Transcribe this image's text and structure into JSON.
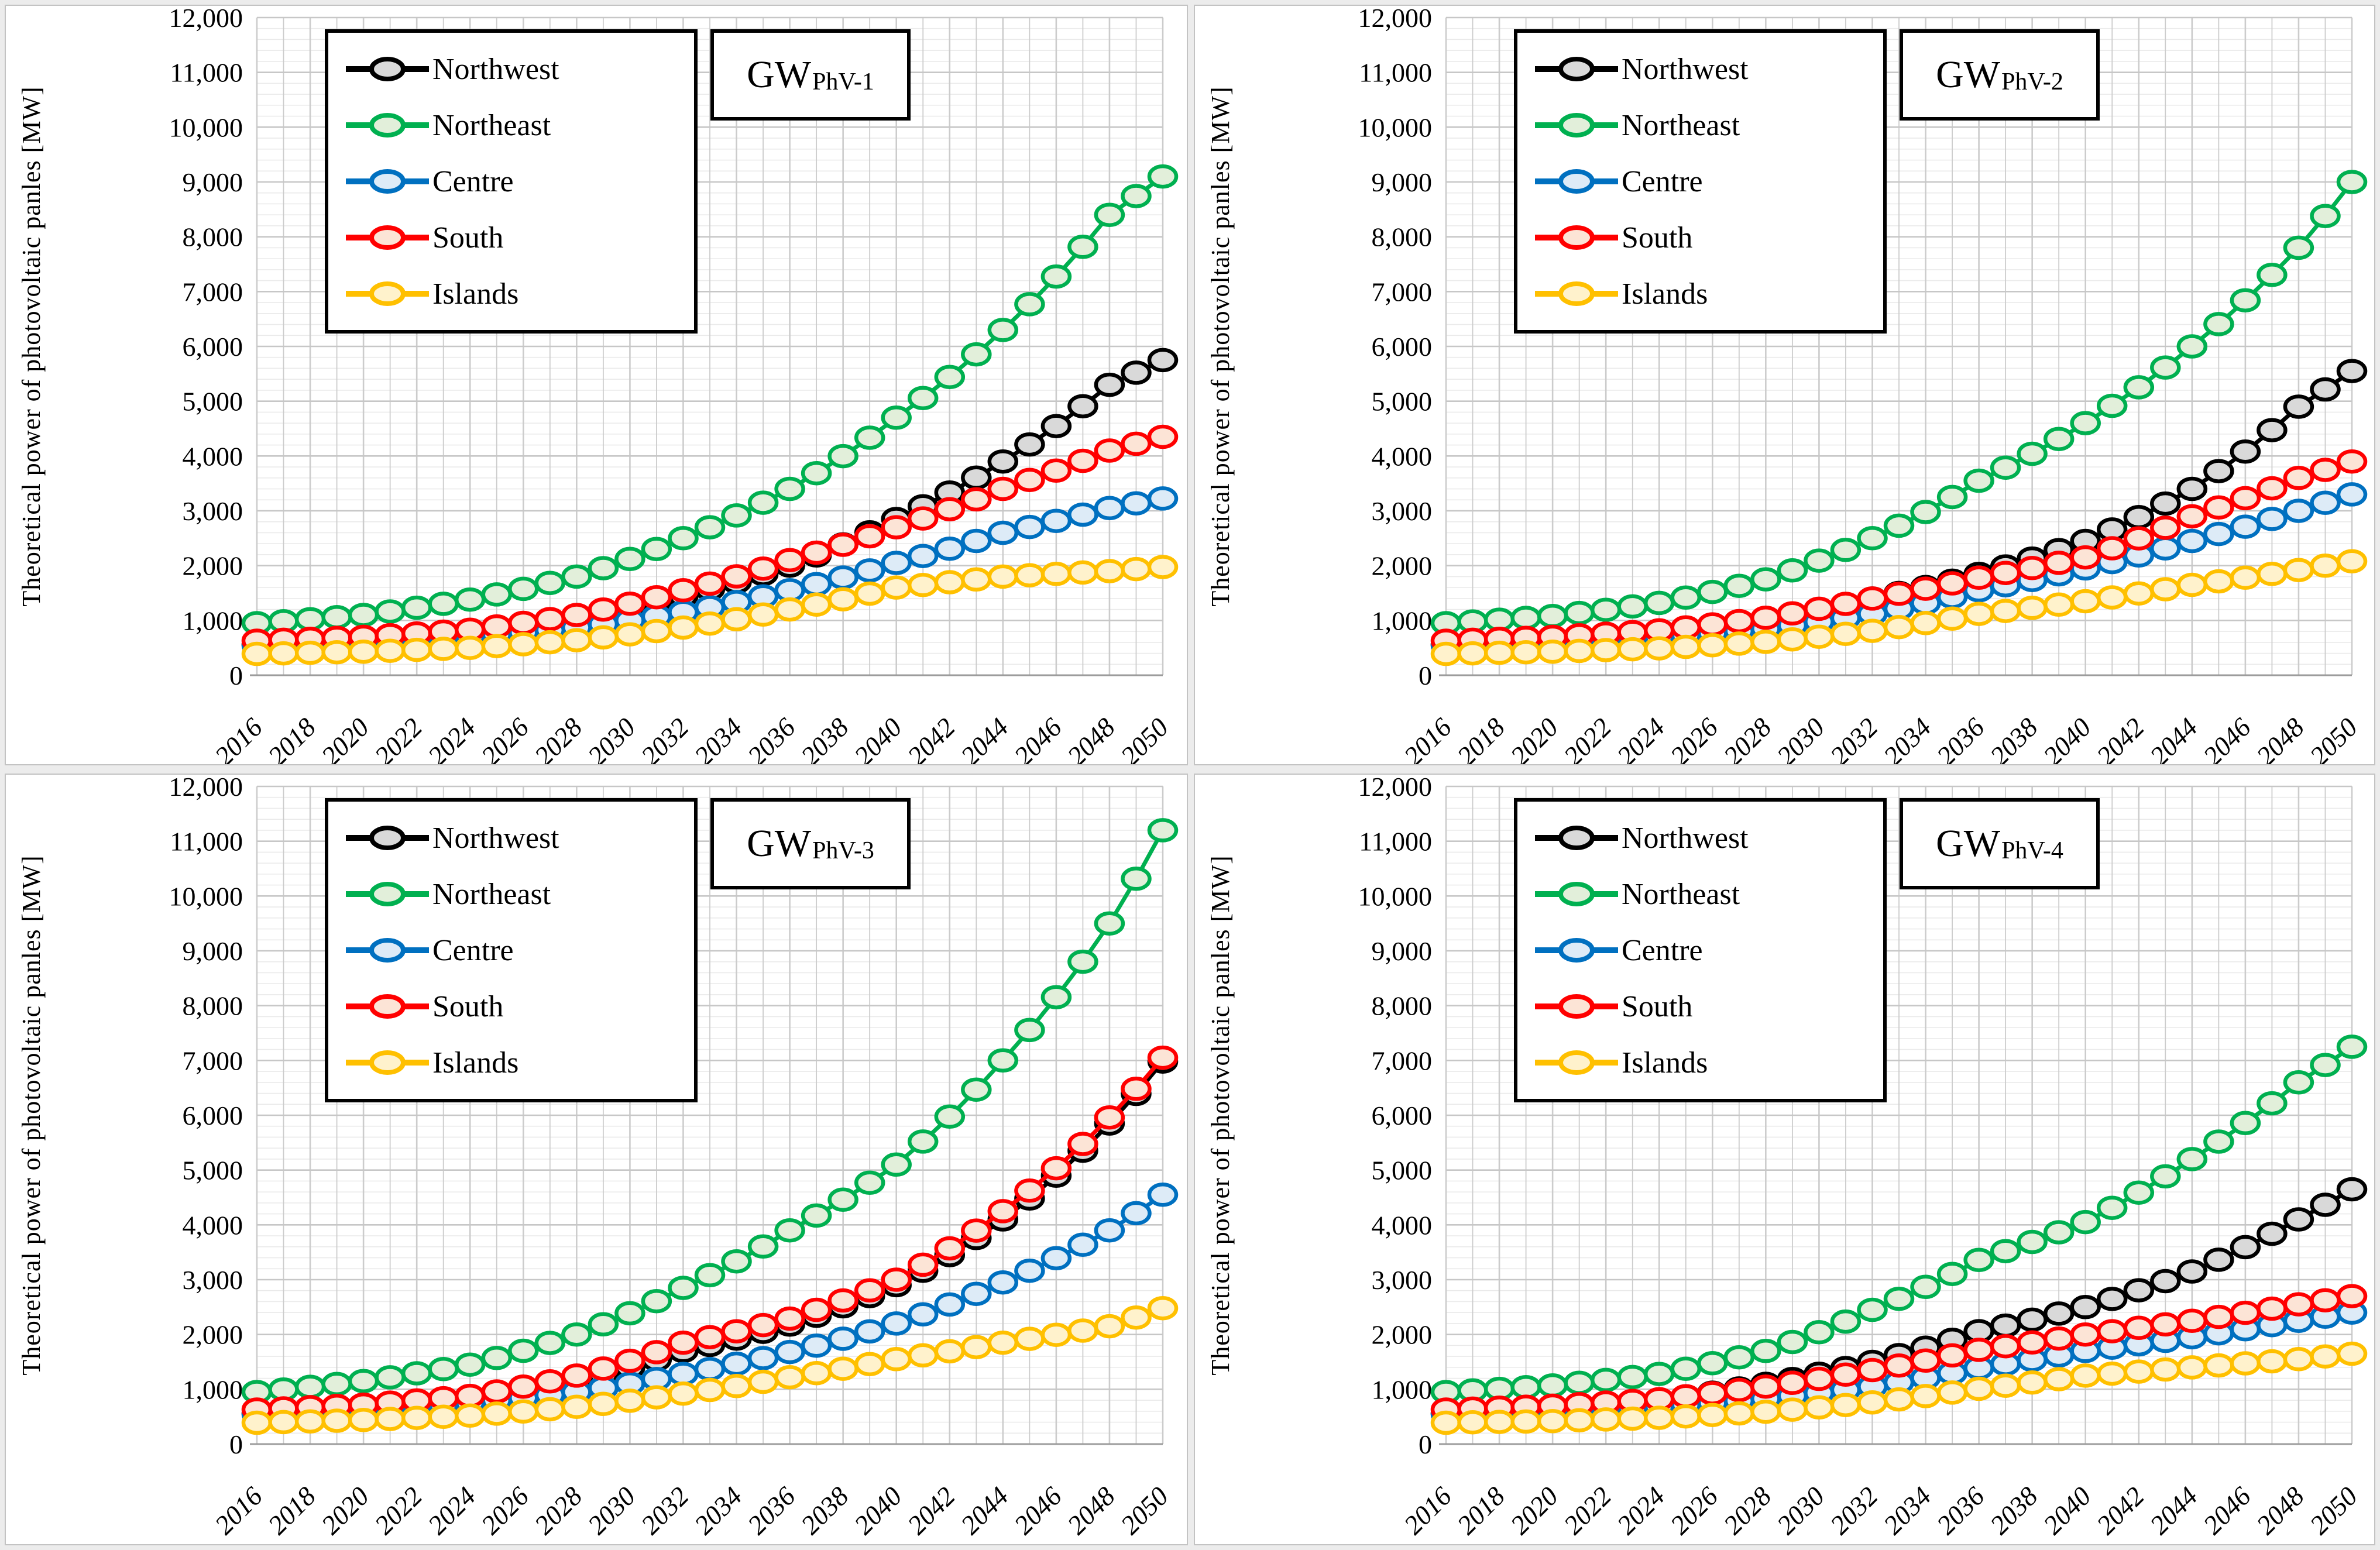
{
  "page": {
    "background": "#ececec",
    "panel_background": "#ffffff",
    "panel_border_color": "#c3c3c3"
  },
  "shared": {
    "y_axis_title": "Theoretical power of photovoltaic panles [MW]",
    "y_ticks": [
      "0",
      "1,000",
      "2,000",
      "3,000",
      "4,000",
      "5,000",
      "6,000",
      "7,000",
      "8,000",
      "9,000",
      "10,000",
      "11,000",
      "12,000"
    ],
    "ylim": [
      0,
      12000
    ],
    "y_major_step": 1000,
    "y_minor_step": 200,
    "xlim": [
      2016,
      2050
    ],
    "x_label_step": 2,
    "grid": "on",
    "legend_position": "top-left-inside",
    "legend": [
      {
        "name": "Northwest",
        "color": "#000000",
        "fill": "#d9d9d9"
      },
      {
        "name": "Northeast",
        "color": "#00b050",
        "fill": "#e2efda"
      },
      {
        "name": "Centre",
        "color": "#0070c0",
        "fill": "#ddebf7"
      },
      {
        "name": "South",
        "color": "#ff0000",
        "fill": "#fce4d6"
      },
      {
        "name": "Islands",
        "color": "#ffc000",
        "fill": "#fff2cc"
      }
    ],
    "anchor_years": [
      2016,
      2020,
      2024,
      2028,
      2032,
      2036,
      2040,
      2044,
      2048,
      2050
    ],
    "interpolation": "smooth-exponential-between-anchors, markers every year"
  },
  "chart_data": [
    {
      "type": "line",
      "title": "GW",
      "title_sub": "PhV-1",
      "xlabel": "",
      "ylabel": "Theoretical power of photovoltaic panles [MW]",
      "series": [
        {
          "name": "Northwest",
          "anchor_values": [
            560,
            640,
            780,
            1050,
            1450,
            2000,
            2850,
            3900,
            5300,
            5750
          ]
        },
        {
          "name": "Northeast",
          "anchor_values": [
            950,
            1100,
            1380,
            1800,
            2500,
            3400,
            4700,
            6300,
            8400,
            9100
          ]
        },
        {
          "name": "Centre",
          "anchor_values": [
            545,
            610,
            700,
            870,
            1150,
            1550,
            2050,
            2600,
            3050,
            3225
          ]
        },
        {
          "name": "South",
          "anchor_values": [
            630,
            700,
            830,
            1100,
            1550,
            2100,
            2700,
            3400,
            4100,
            4350
          ]
        },
        {
          "name": "Islands",
          "anchor_values": [
            390,
            430,
            500,
            640,
            870,
            1200,
            1600,
            1800,
            1900,
            1975
          ]
        }
      ]
    },
    {
      "type": "line",
      "title": "GW",
      "title_sub": "PhV-2",
      "xlabel": "",
      "ylabel": "Theoretical power of photovoltaic panles [MW]",
      "series": [
        {
          "name": "Northwest",
          "anchor_values": [
            560,
            640,
            760,
            1000,
            1400,
            1850,
            2450,
            3400,
            4900,
            5550
          ]
        },
        {
          "name": "Northeast",
          "anchor_values": [
            950,
            1080,
            1320,
            1750,
            2500,
            3550,
            4600,
            6000,
            7800,
            9000
          ]
        },
        {
          "name": "Centre",
          "anchor_values": [
            545,
            600,
            690,
            850,
            1120,
            1550,
            1950,
            2450,
            3000,
            3300
          ]
        },
        {
          "name": "South",
          "anchor_values": [
            630,
            700,
            820,
            1050,
            1400,
            1780,
            2150,
            2900,
            3600,
            3900
          ]
        },
        {
          "name": "Islands",
          "anchor_values": [
            390,
            430,
            490,
            610,
            810,
            1120,
            1350,
            1650,
            1920,
            2080
          ]
        }
      ]
    },
    {
      "type": "line",
      "title": "GW",
      "title_sub": "PhV-3",
      "xlabel": "",
      "ylabel": "Theoretical power of photovoltaic panles [MW]",
      "series": [
        {
          "name": "Northwest",
          "anchor_values": [
            560,
            650,
            800,
            1150,
            1700,
            2180,
            2900,
            4100,
            5850,
            6980
          ]
        },
        {
          "name": "Northeast",
          "anchor_values": [
            950,
            1150,
            1450,
            2000,
            2850,
            3900,
            5100,
            7000,
            9500,
            11200
          ]
        },
        {
          "name": "Centre",
          "anchor_values": [
            545,
            620,
            750,
            950,
            1280,
            1680,
            2200,
            2950,
            3900,
            4550
          ]
        },
        {
          "name": "South",
          "anchor_values": [
            630,
            720,
            880,
            1250,
            1850,
            2290,
            3000,
            4250,
            5960,
            7050
          ]
        },
        {
          "name": "Islands",
          "anchor_values": [
            390,
            440,
            520,
            680,
            920,
            1220,
            1550,
            1850,
            2150,
            2480
          ]
        }
      ]
    },
    {
      "type": "line",
      "title": "GW",
      "title_sub": "PhV-4",
      "xlabel": "",
      "ylabel": "Theoretical power of photovoltaic panles [MW]",
      "series": [
        {
          "name": "Northwest",
          "anchor_values": [
            560,
            650,
            800,
            1100,
            1500,
            2060,
            2500,
            3150,
            4100,
            4650
          ]
        },
        {
          "name": "Northeast",
          "anchor_values": [
            950,
            1070,
            1280,
            1700,
            2450,
            3360,
            4050,
            5200,
            6600,
            7250
          ]
        },
        {
          "name": "Centre",
          "anchor_values": [
            545,
            600,
            680,
            830,
            1050,
            1390,
            1700,
            1950,
            2250,
            2400
          ]
        },
        {
          "name": "South",
          "anchor_values": [
            630,
            700,
            820,
            1050,
            1350,
            1720,
            2000,
            2250,
            2550,
            2700
          ]
        },
        {
          "name": "Islands",
          "anchor_values": [
            390,
            420,
            480,
            590,
            760,
            1010,
            1250,
            1400,
            1550,
            1650
          ]
        }
      ]
    }
  ]
}
